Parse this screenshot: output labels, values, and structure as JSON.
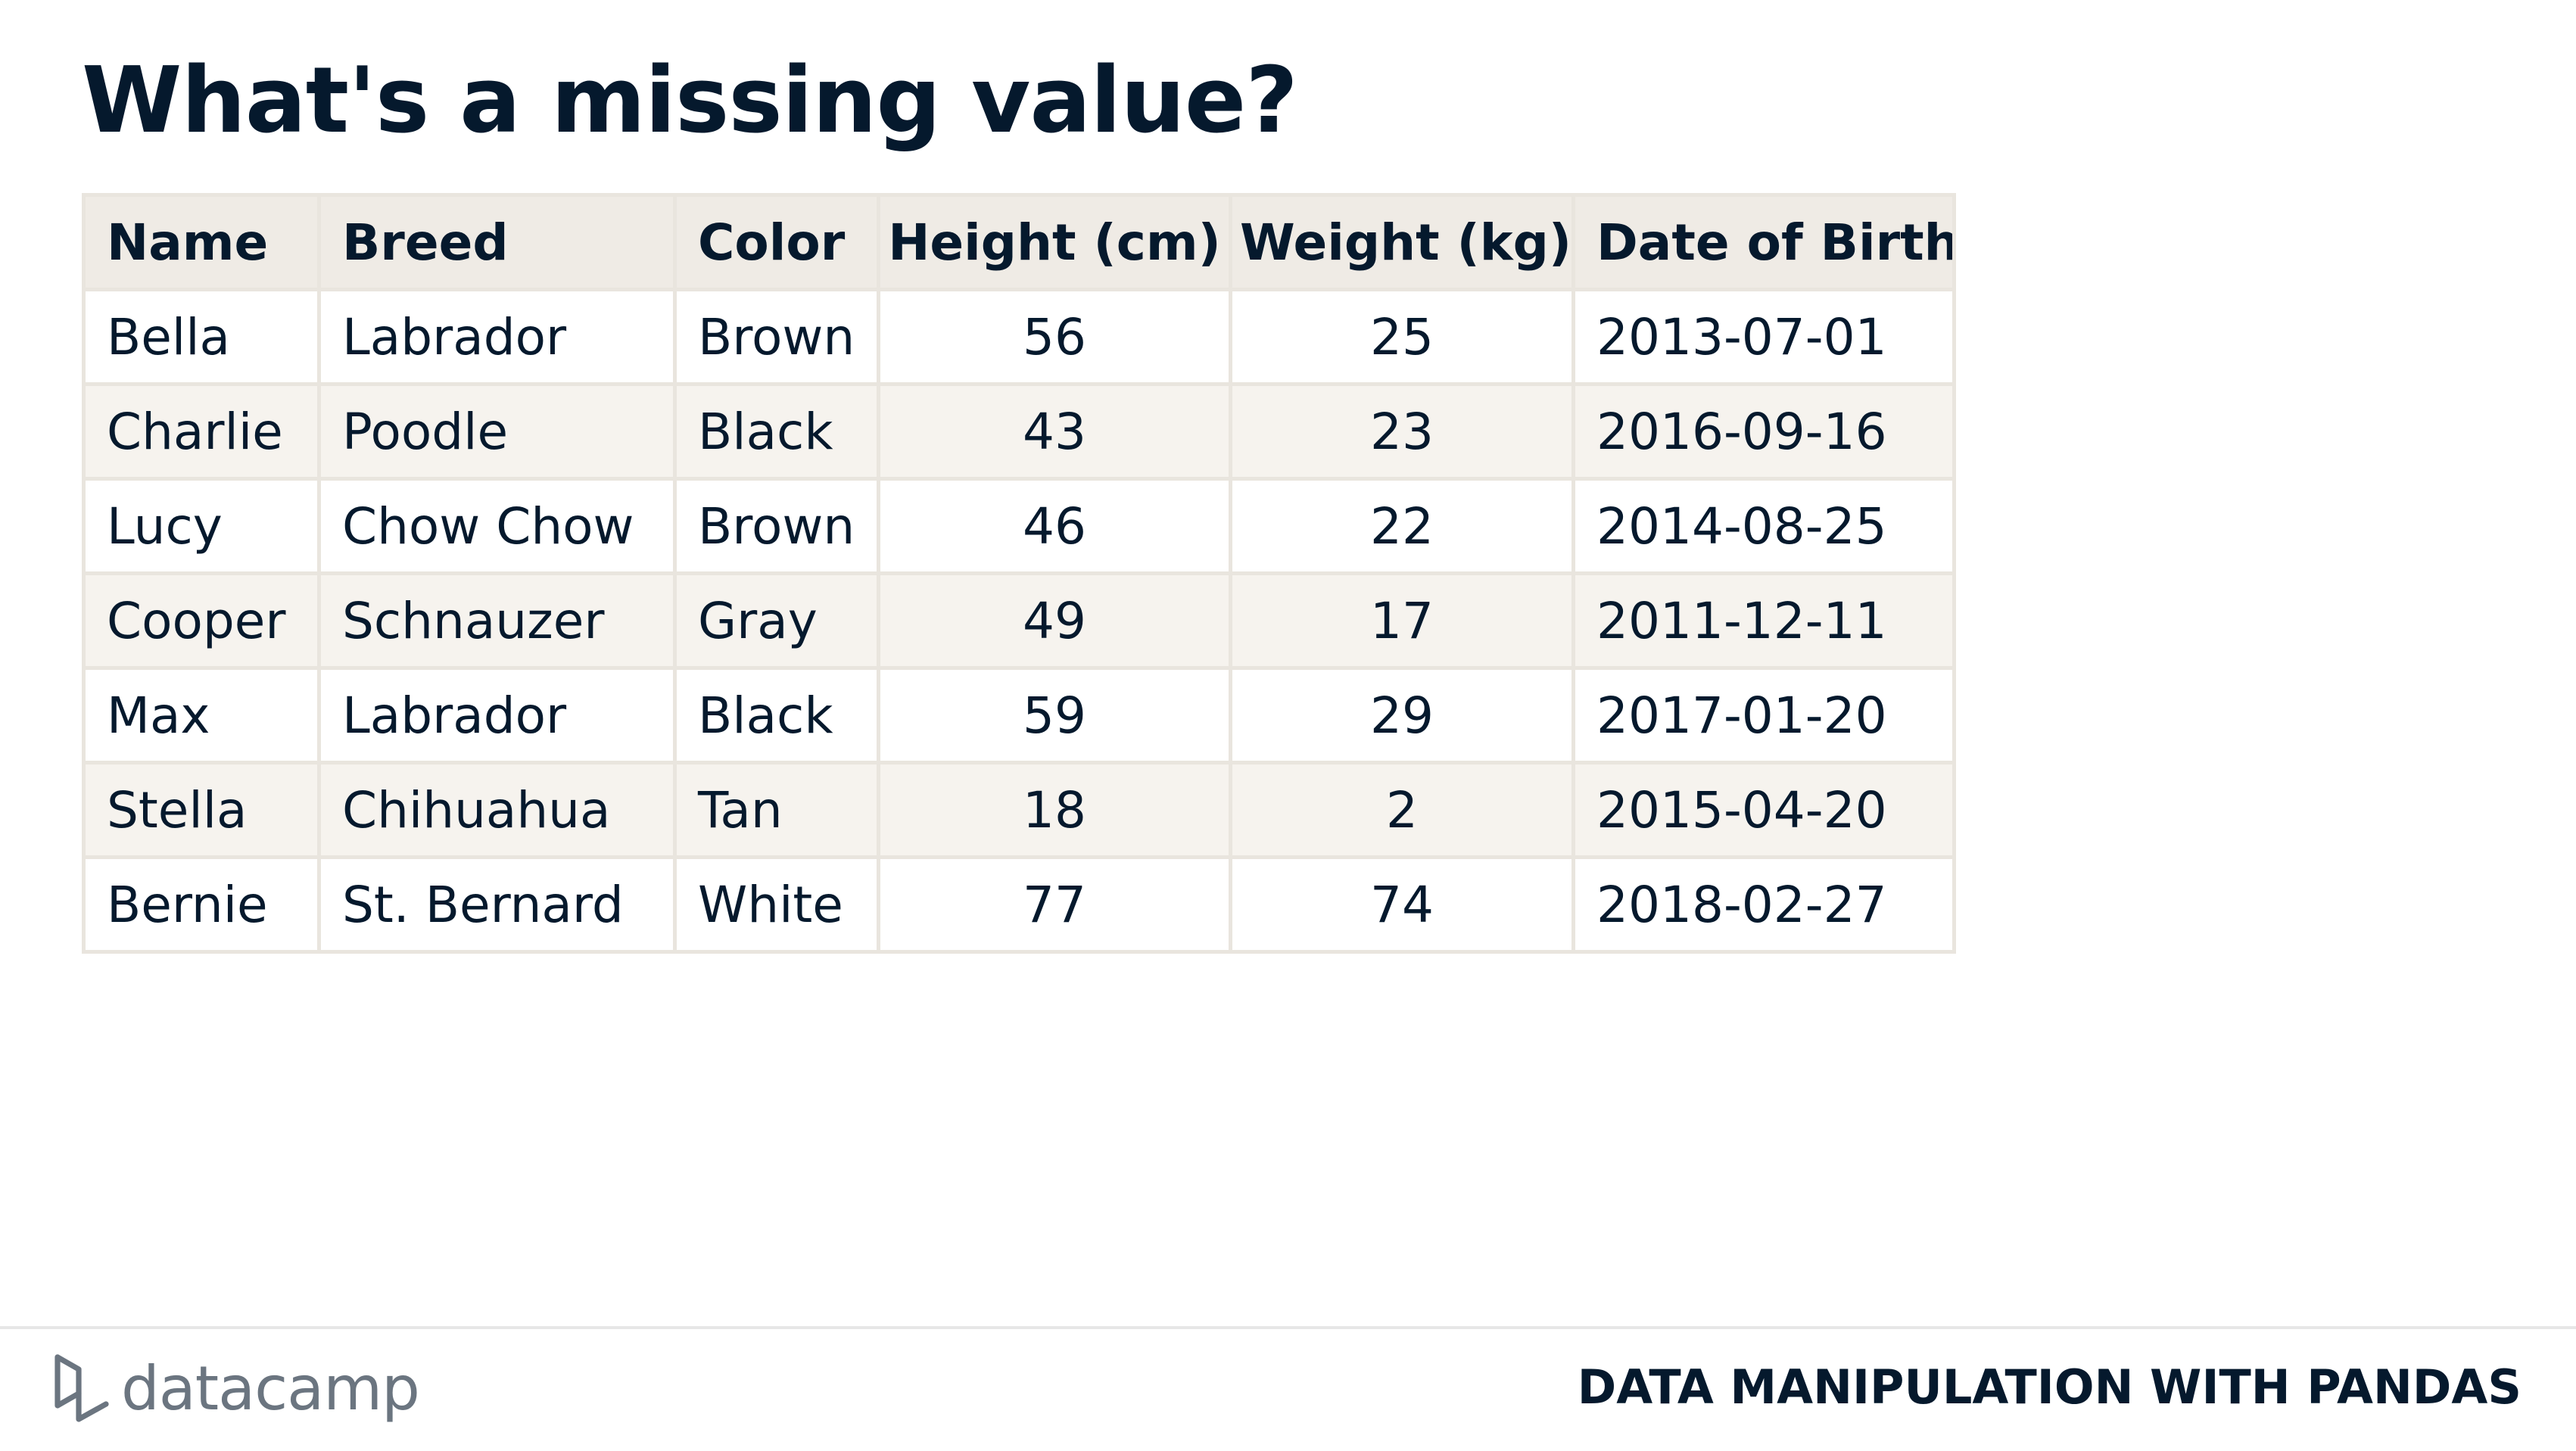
{
  "slide": {
    "title": "What's a missing value?"
  },
  "table": {
    "columns": [
      "Name",
      "Breed",
      "Color",
      "Height (cm)",
      "Weight (kg)",
      "Date of Birth"
    ],
    "rows": [
      [
        "Bella",
        "Labrador",
        "Brown",
        "56",
        "25",
        "2013-07-01"
      ],
      [
        "Charlie",
        "Poodle",
        "Black",
        "43",
        "23",
        "2016-09-16"
      ],
      [
        "Lucy",
        "Chow Chow",
        "Brown",
        "46",
        "22",
        "2014-08-25"
      ],
      [
        "Cooper",
        "Schnauzer",
        "Gray",
        "49",
        "17",
        "2011-12-11"
      ],
      [
        "Max",
        "Labrador",
        "Black",
        "59",
        "29",
        "2017-01-20"
      ],
      [
        "Stella",
        "Chihuahua",
        "Tan",
        "18",
        "2",
        "2015-04-20"
      ],
      [
        "Bernie",
        "St. Bernard",
        "White",
        "77",
        "74",
        "2018-02-27"
      ]
    ]
  },
  "footer": {
    "logo_text": "datacamp",
    "logo_icon": "datacamp-logo-icon",
    "course_title": "DATA MANIPULATION WITH PANDAS"
  },
  "colors": {
    "text": "#05192d",
    "header_bg": "#efebe5",
    "stripe_bg": "#f6f3ee",
    "border": "#e9e5de",
    "logo_gray": "#6b7580"
  }
}
